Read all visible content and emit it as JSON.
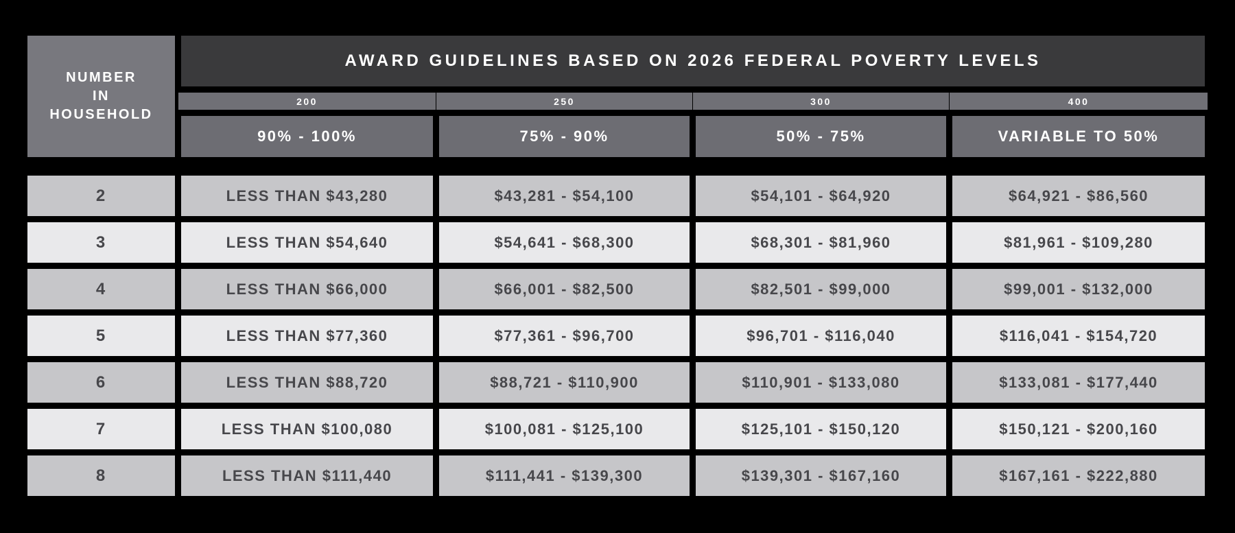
{
  "table": {
    "title": "AWARD GUIDELINES BASED ON 2026 FEDERAL POVERTY LEVELS",
    "row_header_lines": [
      "NUMBER",
      "IN",
      "HOUSEHOLD"
    ],
    "fpl_levels": [
      "200",
      "250",
      "300",
      "400"
    ],
    "award_tiers": [
      "90% - 100%",
      "75% - 90%",
      "50% - 75%",
      "VARIABLE TO 50%"
    ],
    "rows": [
      {
        "household": "2",
        "cells": [
          "LESS THAN $43,280",
          "$43,281 - $54,100",
          "$54,101 - $64,920",
          "$64,921 - $86,560"
        ]
      },
      {
        "household": "3",
        "cells": [
          "LESS THAN $54,640",
          "$54,641 - $68,300",
          "$68,301 - $81,960",
          "$81,961 - $109,280"
        ]
      },
      {
        "household": "4",
        "cells": [
          "LESS THAN $66,000",
          "$66,001 - $82,500",
          "$82,501 - $99,000",
          "$99,001 - $132,000"
        ]
      },
      {
        "household": "5",
        "cells": [
          "LESS THAN $77,360",
          "$77,361 - $96,700",
          "$96,701 - $116,040",
          "$116,041 - $154,720"
        ]
      },
      {
        "household": "6",
        "cells": [
          "LESS THAN $88,720",
          "$88,721 - $110,900",
          "$110,901 - $133,080",
          "$133,081 - $177,440"
        ]
      },
      {
        "household": "7",
        "cells": [
          "LESS THAN $100,080",
          "$100,081 - $125,100",
          "$125,101 - $150,120",
          "$150,121 - $200,160"
        ]
      },
      {
        "household": "8",
        "cells": [
          "LESS THAN $111,440",
          "$111,441 - $139,300",
          "$139,301 - $167,160",
          "$167,161 - $222,880"
        ]
      }
    ]
  },
  "colors": {
    "background": "#000000",
    "header_dark": "#3a3a3c",
    "row_header_gray": "#78787e",
    "level_bar_gray": "#707076",
    "tier_box_gray": "#6d6d73",
    "data_row_dark": "#c6c6c9",
    "data_row_light": "#e9e9eb",
    "data_text": "#47474b",
    "header_text": "#ffffff"
  },
  "chart_data": {
    "type": "table",
    "title": "AWARD GUIDELINES BASED ON 2026 FEDERAL POVERTY LEVELS",
    "row_header": "NUMBER IN HOUSEHOLD",
    "column_groups": [
      {
        "fpl_percent": "200",
        "award_range": "90% - 100%"
      },
      {
        "fpl_percent": "250",
        "award_range": "75% - 90%"
      },
      {
        "fpl_percent": "300",
        "award_range": "50% - 75%"
      },
      {
        "fpl_percent": "400",
        "award_range": "VARIABLE TO 50%"
      }
    ],
    "rows": [
      {
        "number_in_household": 2,
        "income_ranges": [
          "LESS THAN $43,280",
          "$43,281 - $54,100",
          "$54,101 - $64,920",
          "$64,921 - $86,560"
        ]
      },
      {
        "number_in_household": 3,
        "income_ranges": [
          "LESS THAN $54,640",
          "$54,641 - $68,300",
          "$68,301 - $81,960",
          "$81,961 - $109,280"
        ]
      },
      {
        "number_in_household": 4,
        "income_ranges": [
          "LESS THAN $66,000",
          "$66,001 - $82,500",
          "$82,501 - $99,000",
          "$99,001 - $132,000"
        ]
      },
      {
        "number_in_household": 5,
        "income_ranges": [
          "LESS THAN $77,360",
          "$77,361 - $96,700",
          "$96,701 - $116,040",
          "$116,041 - $154,720"
        ]
      },
      {
        "number_in_household": 6,
        "income_ranges": [
          "LESS THAN $88,720",
          "$88,721 - $110,900",
          "$110,901 - $133,080",
          "$133,081 - $177,440"
        ]
      },
      {
        "number_in_household": 7,
        "income_ranges": [
          "LESS THAN $100,080",
          "$100,081 - $125,100",
          "$125,101 - $150,120",
          "$150,121 - $200,160"
        ]
      },
      {
        "number_in_household": 8,
        "income_ranges": [
          "LESS THAN $111,440",
          "$111,441 - $139,300",
          "$139,301 - $167,160",
          "$167,161 - $222,880"
        ]
      }
    ]
  }
}
